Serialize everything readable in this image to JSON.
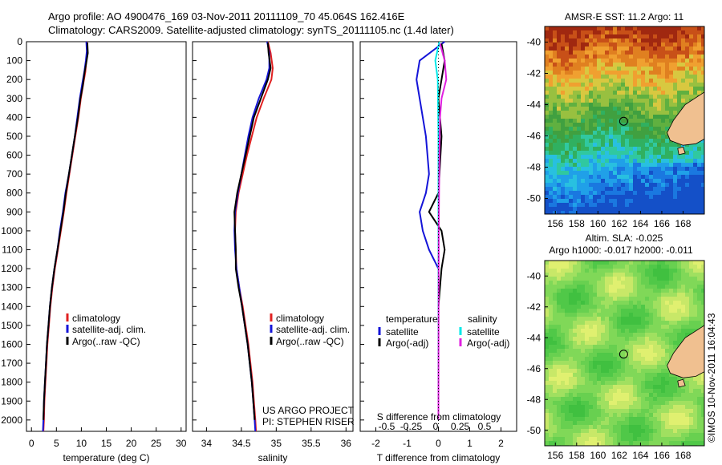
{
  "header": {
    "line1": "Argo profile: AO 4900476_169 03-Nov-2011 20111109_70 45.064S 162.416E",
    "line2": "Climatology: CARS2009. Satellite-adjusted climatology: synTS_20111105.nc (1.4d later)"
  },
  "watermark": "©IMOS 10-Nov-2011 16:04:43",
  "colors": {
    "climatology": "#e02020",
    "satellite": "#1414d8",
    "argo": "#000000",
    "satellite_s": "#00e8e8",
    "argo_s": "#e020e0"
  },
  "chart_data": [
    {
      "type": "line",
      "id": "temperature",
      "xlabel": "temperature (deg C)",
      "xlim": [
        -1,
        31
      ],
      "ylim": [
        2060,
        0
      ],
      "xticks": [
        0,
        5,
        10,
        15,
        20,
        25,
        30
      ],
      "yticks": [
        0,
        100,
        200,
        300,
        400,
        500,
        600,
        700,
        800,
        900,
        1000,
        1100,
        1200,
        1300,
        1400,
        1500,
        1600,
        1700,
        1800,
        1900,
        2000
      ],
      "legend": [
        "climatology",
        "satellite-adj. clim.",
        "Argo(..raw -QC)"
      ],
      "series": [
        {
          "name": "climatology",
          "color": "#e02020",
          "points": [
            [
              11.1,
              0
            ],
            [
              11.2,
              50
            ],
            [
              11.0,
              100
            ],
            [
              10.8,
              160
            ],
            [
              10.4,
              220
            ],
            [
              9.9,
              300
            ],
            [
              9.4,
              400
            ],
            [
              8.8,
              500
            ],
            [
              8.2,
              600
            ],
            [
              7.6,
              700
            ],
            [
              7.0,
              800
            ],
            [
              6.5,
              900
            ],
            [
              5.9,
              1000
            ],
            [
              5.3,
              1100
            ],
            [
              4.7,
              1200
            ],
            [
              4.2,
              1300
            ],
            [
              3.8,
              1400
            ],
            [
              3.5,
              1500
            ],
            [
              3.2,
              1600
            ],
            [
              3.0,
              1700
            ],
            [
              2.8,
              1800
            ],
            [
              2.6,
              1900
            ],
            [
              2.5,
              2000
            ],
            [
              2.4,
              2060
            ]
          ]
        },
        {
          "name": "satellite-adj. clim.",
          "color": "#1414d8",
          "points": [
            [
              11.0,
              0
            ],
            [
              11.1,
              50
            ],
            [
              10.9,
              100
            ],
            [
              10.6,
              160
            ],
            [
              10.2,
              220
            ],
            [
              9.7,
              300
            ],
            [
              9.2,
              400
            ],
            [
              8.7,
              500
            ],
            [
              8.1,
              600
            ],
            [
              7.5,
              700
            ],
            [
              6.8,
              800
            ],
            [
              6.3,
              900
            ],
            [
              5.7,
              1000
            ],
            [
              5.2,
              1100
            ],
            [
              4.6,
              1200
            ],
            [
              4.1,
              1300
            ],
            [
              3.7,
              1400
            ],
            [
              3.4,
              1500
            ],
            [
              3.1,
              1600
            ],
            [
              2.9,
              1700
            ],
            [
              2.7,
              1800
            ],
            [
              2.5,
              1900
            ],
            [
              2.4,
              2000
            ],
            [
              2.3,
              2060
            ]
          ]
        },
        {
          "name": "Argo(..raw -QC)",
          "color": "#000000",
          "points": [
            [
              11.2,
              5
            ],
            [
              11.3,
              60
            ],
            [
              11.0,
              110
            ],
            [
              10.6,
              170
            ],
            [
              10.3,
              230
            ],
            [
              9.8,
              300
            ],
            [
              9.3,
              400
            ],
            [
              8.7,
              500
            ],
            [
              8.1,
              600
            ],
            [
              7.5,
              700
            ],
            [
              6.9,
              800
            ],
            [
              6.4,
              900
            ],
            [
              5.8,
              1000
            ],
            [
              5.2,
              1100
            ],
            [
              4.6,
              1200
            ],
            [
              4.1,
              1300
            ],
            [
              3.7,
              1400
            ],
            [
              3.4,
              1500
            ],
            [
              3.1,
              1600
            ],
            [
              2.9,
              1700
            ],
            [
              2.7,
              1800
            ],
            [
              2.5,
              1900
            ],
            [
              2.4,
              2000
            ]
          ]
        }
      ]
    },
    {
      "type": "line",
      "id": "salinity",
      "xlabel": "salinity",
      "xlim": [
        33.8,
        36.1
      ],
      "ylim": [
        2060,
        0
      ],
      "xticks": [
        34,
        34.5,
        35,
        35.5,
        36
      ],
      "legend": [
        "climatology",
        "satellite-adj. clim.",
        "Argo(..raw -QC)"
      ],
      "annotation": [
        "US ARGO PROJECT",
        "PI: STEPHEN RISER"
      ],
      "series": [
        {
          "name": "climatology",
          "color": "#e02020",
          "points": [
            [
              34.88,
              0
            ],
            [
              34.92,
              60
            ],
            [
              34.95,
              140
            ],
            [
              34.93,
              200
            ],
            [
              34.82,
              300
            ],
            [
              34.72,
              400
            ],
            [
              34.65,
              500
            ],
            [
              34.58,
              600
            ],
            [
              34.52,
              700
            ],
            [
              34.46,
              800
            ],
            [
              34.42,
              900
            ],
            [
              34.41,
              1000
            ],
            [
              34.42,
              1100
            ],
            [
              34.43,
              1200
            ],
            [
              34.47,
              1300
            ],
            [
              34.52,
              1400
            ],
            [
              34.56,
              1500
            ],
            [
              34.6,
              1600
            ],
            [
              34.63,
              1700
            ],
            [
              34.66,
              1800
            ],
            [
              34.68,
              1900
            ],
            [
              34.7,
              2000
            ],
            [
              34.71,
              2060
            ]
          ]
        },
        {
          "name": "satellite-adj. clim.",
          "color": "#1414d8",
          "points": [
            [
              34.87,
              0
            ],
            [
              34.9,
              60
            ],
            [
              34.9,
              140
            ],
            [
              34.86,
              200
            ],
            [
              34.75,
              300
            ],
            [
              34.66,
              400
            ],
            [
              34.6,
              500
            ],
            [
              34.55,
              600
            ],
            [
              34.5,
              700
            ],
            [
              34.45,
              800
            ],
            [
              34.41,
              900
            ],
            [
              34.4,
              1000
            ],
            [
              34.41,
              1100
            ],
            [
              34.43,
              1200
            ],
            [
              34.47,
              1300
            ],
            [
              34.51,
              1400
            ],
            [
              34.55,
              1500
            ],
            [
              34.59,
              1600
            ],
            [
              34.62,
              1700
            ],
            [
              34.65,
              1800
            ],
            [
              34.67,
              1900
            ],
            [
              34.69,
              2000
            ],
            [
              34.7,
              2060
            ]
          ]
        },
        {
          "name": "Argo(..raw -QC)",
          "color": "#000000",
          "points": [
            [
              34.88,
              5
            ],
            [
              34.89,
              60
            ],
            [
              34.92,
              140
            ],
            [
              34.88,
              200
            ],
            [
              34.78,
              300
            ],
            [
              34.68,
              400
            ],
            [
              34.62,
              500
            ],
            [
              34.56,
              600
            ],
            [
              34.5,
              700
            ],
            [
              34.44,
              800
            ],
            [
              34.4,
              900
            ],
            [
              34.41,
              1000
            ],
            [
              34.42,
              1100
            ],
            [
              34.42,
              1200
            ],
            [
              34.46,
              1300
            ],
            [
              34.51,
              1400
            ],
            [
              34.55,
              1500
            ],
            [
              34.59,
              1600
            ],
            [
              34.62,
              1700
            ],
            [
              34.65,
              1800
            ],
            [
              34.67,
              1900
            ],
            [
              34.69,
              2000
            ]
          ]
        }
      ]
    },
    {
      "type": "line",
      "id": "differences",
      "xlabel": "T difference from climatology",
      "xlabel2": "S difference from climatology",
      "xlim": [
        -2.5,
        2.5
      ],
      "ylim": [
        2060,
        0
      ],
      "xticks": [
        -2,
        -1,
        0,
        1,
        2
      ],
      "xticks2": [
        -0.5,
        -0.25,
        0,
        0.25,
        0.5
      ],
      "legend_groups": [
        {
          "title": "temperature",
          "items": [
            "satellite",
            "Argo(-adj)"
          ]
        },
        {
          "title": "salinity",
          "items": [
            "satellite",
            "Argo(-adj)"
          ]
        }
      ],
      "series": [
        {
          "name": "temperature satellite",
          "color": "#1414d8",
          "points": [
            [
              0.2,
              0
            ],
            [
              -0.6,
              100
            ],
            [
              -0.7,
              200
            ],
            [
              -0.6,
              300
            ],
            [
              -0.4,
              500
            ],
            [
              -0.3,
              700
            ],
            [
              -0.4,
              800
            ],
            [
              -0.6,
              900
            ],
            [
              -0.5,
              1000
            ],
            [
              -0.3,
              1100
            ],
            [
              0,
              1200
            ],
            [
              0,
              1400
            ],
            [
              0,
              2000
            ]
          ]
        },
        {
          "name": "temperature Argo(-adj)",
          "color": "#000000",
          "points": [
            [
              0.1,
              10
            ],
            [
              0.2,
              100
            ],
            [
              0.1,
              200
            ],
            [
              0.0,
              300
            ],
            [
              0.1,
              500
            ],
            [
              0.0,
              800
            ],
            [
              -0.3,
              900
            ],
            [
              0.1,
              1000
            ],
            [
              0.2,
              1100
            ],
            [
              0.1,
              1200
            ],
            [
              0,
              1400
            ],
            [
              0,
              2000
            ]
          ]
        },
        {
          "name": "salinity satellite",
          "color": "#00e8e8",
          "points": [
            [
              0.03,
              0
            ],
            [
              -0.1,
              100
            ],
            [
              -0.02,
              200
            ],
            [
              0.0,
              500
            ],
            [
              0.0,
              1000
            ],
            [
              0.0,
              2000
            ]
          ]
        },
        {
          "name": "salinity Argo(-adj)",
          "color": "#e020e0",
          "points": [
            [
              0.05,
              10
            ],
            [
              0.2,
              100
            ],
            [
              0.25,
              200
            ],
            [
              0.1,
              300
            ],
            [
              0.05,
              400
            ],
            [
              0.03,
              600
            ],
            [
              0.01,
              1000
            ],
            [
              0,
              2000
            ]
          ]
        }
      ]
    },
    {
      "type": "heatmap",
      "id": "sst-map",
      "title": "AMSR-E SST: 11.2 Argo: 11",
      "xticks": [
        156,
        158,
        160,
        162,
        164,
        166,
        168
      ],
      "yticks": [
        -40,
        -42,
        -44,
        -46,
        -48,
        -50
      ],
      "xlim": [
        155,
        170
      ],
      "ylim": [
        -51,
        -39
      ],
      "argo_position": [
        162.416,
        -45.064
      ]
    },
    {
      "type": "heatmap",
      "id": "sla-map",
      "title": "Altim. SLA: -0.025",
      "subtitle": "Argo h1000: -0.017 h2000: -0.011",
      "xticks": [
        156,
        158,
        160,
        162,
        164,
        166,
        168
      ],
      "yticks": [
        -40,
        -42,
        -44,
        -46,
        -48,
        -50
      ],
      "xlim": [
        155,
        170
      ],
      "ylim": [
        -51,
        -39
      ],
      "argo_position": [
        162.416,
        -45.064
      ]
    }
  ]
}
